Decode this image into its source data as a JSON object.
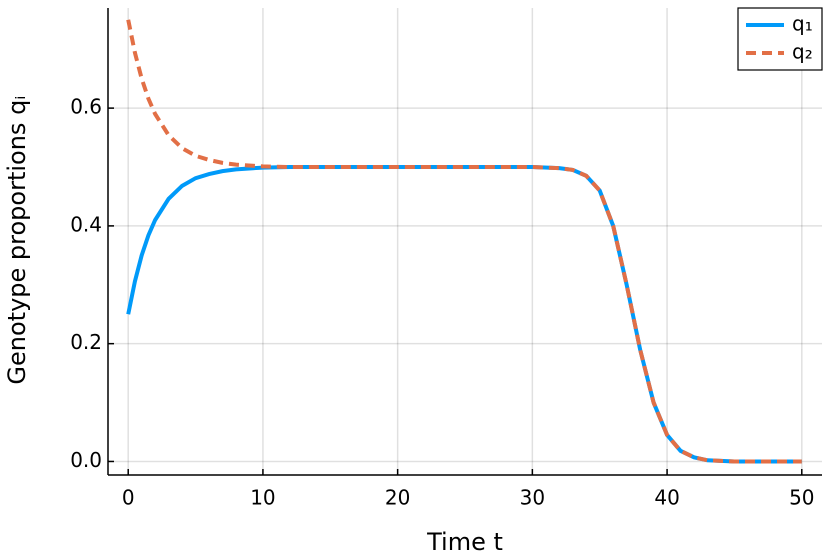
{
  "chart_data": {
    "type": "line",
    "x_label": "Time t",
    "y_label": "Genotype proportions qᵢ",
    "x": [
      0,
      0.5,
      1,
      1.5,
      2,
      3,
      4,
      5,
      6,
      7,
      8,
      10,
      12,
      15,
      20,
      25,
      30,
      32,
      33,
      34,
      35,
      36,
      37,
      38,
      39,
      40,
      41,
      42,
      43,
      45,
      50
    ],
    "series": [
      {
        "name": "q₁",
        "color": "#009af9",
        "dash": false,
        "values": [
          0.25,
          0.306,
          0.35,
          0.384,
          0.41,
          0.446,
          0.468,
          0.481,
          0.488,
          0.493,
          0.496,
          0.499,
          0.5,
          0.5,
          0.5,
          0.5,
          0.5,
          0.498,
          0.495,
          0.485,
          0.46,
          0.4,
          0.3,
          0.19,
          0.1,
          0.045,
          0.018,
          0.007,
          0.002,
          0,
          0
        ]
      },
      {
        "name": "q₂",
        "color": "#e26f46",
        "dash": true,
        "values": [
          0.75,
          0.694,
          0.65,
          0.616,
          0.59,
          0.554,
          0.532,
          0.519,
          0.512,
          0.507,
          0.504,
          0.501,
          0.5,
          0.5,
          0.5,
          0.5,
          0.5,
          0.498,
          0.495,
          0.485,
          0.46,
          0.4,
          0.3,
          0.19,
          0.1,
          0.045,
          0.018,
          0.007,
          0.002,
          0,
          0
        ]
      }
    ],
    "xlim": [
      -1.5,
      51.5
    ],
    "ylim": [
      -0.023,
      0.77
    ],
    "xticks": [
      0,
      10,
      20,
      30,
      40,
      50
    ],
    "yticks": [
      {
        "value": 0,
        "label": "0.0"
      },
      0.2,
      0.4,
      0.6
    ],
    "grid": true,
    "legend": "top-right"
  }
}
